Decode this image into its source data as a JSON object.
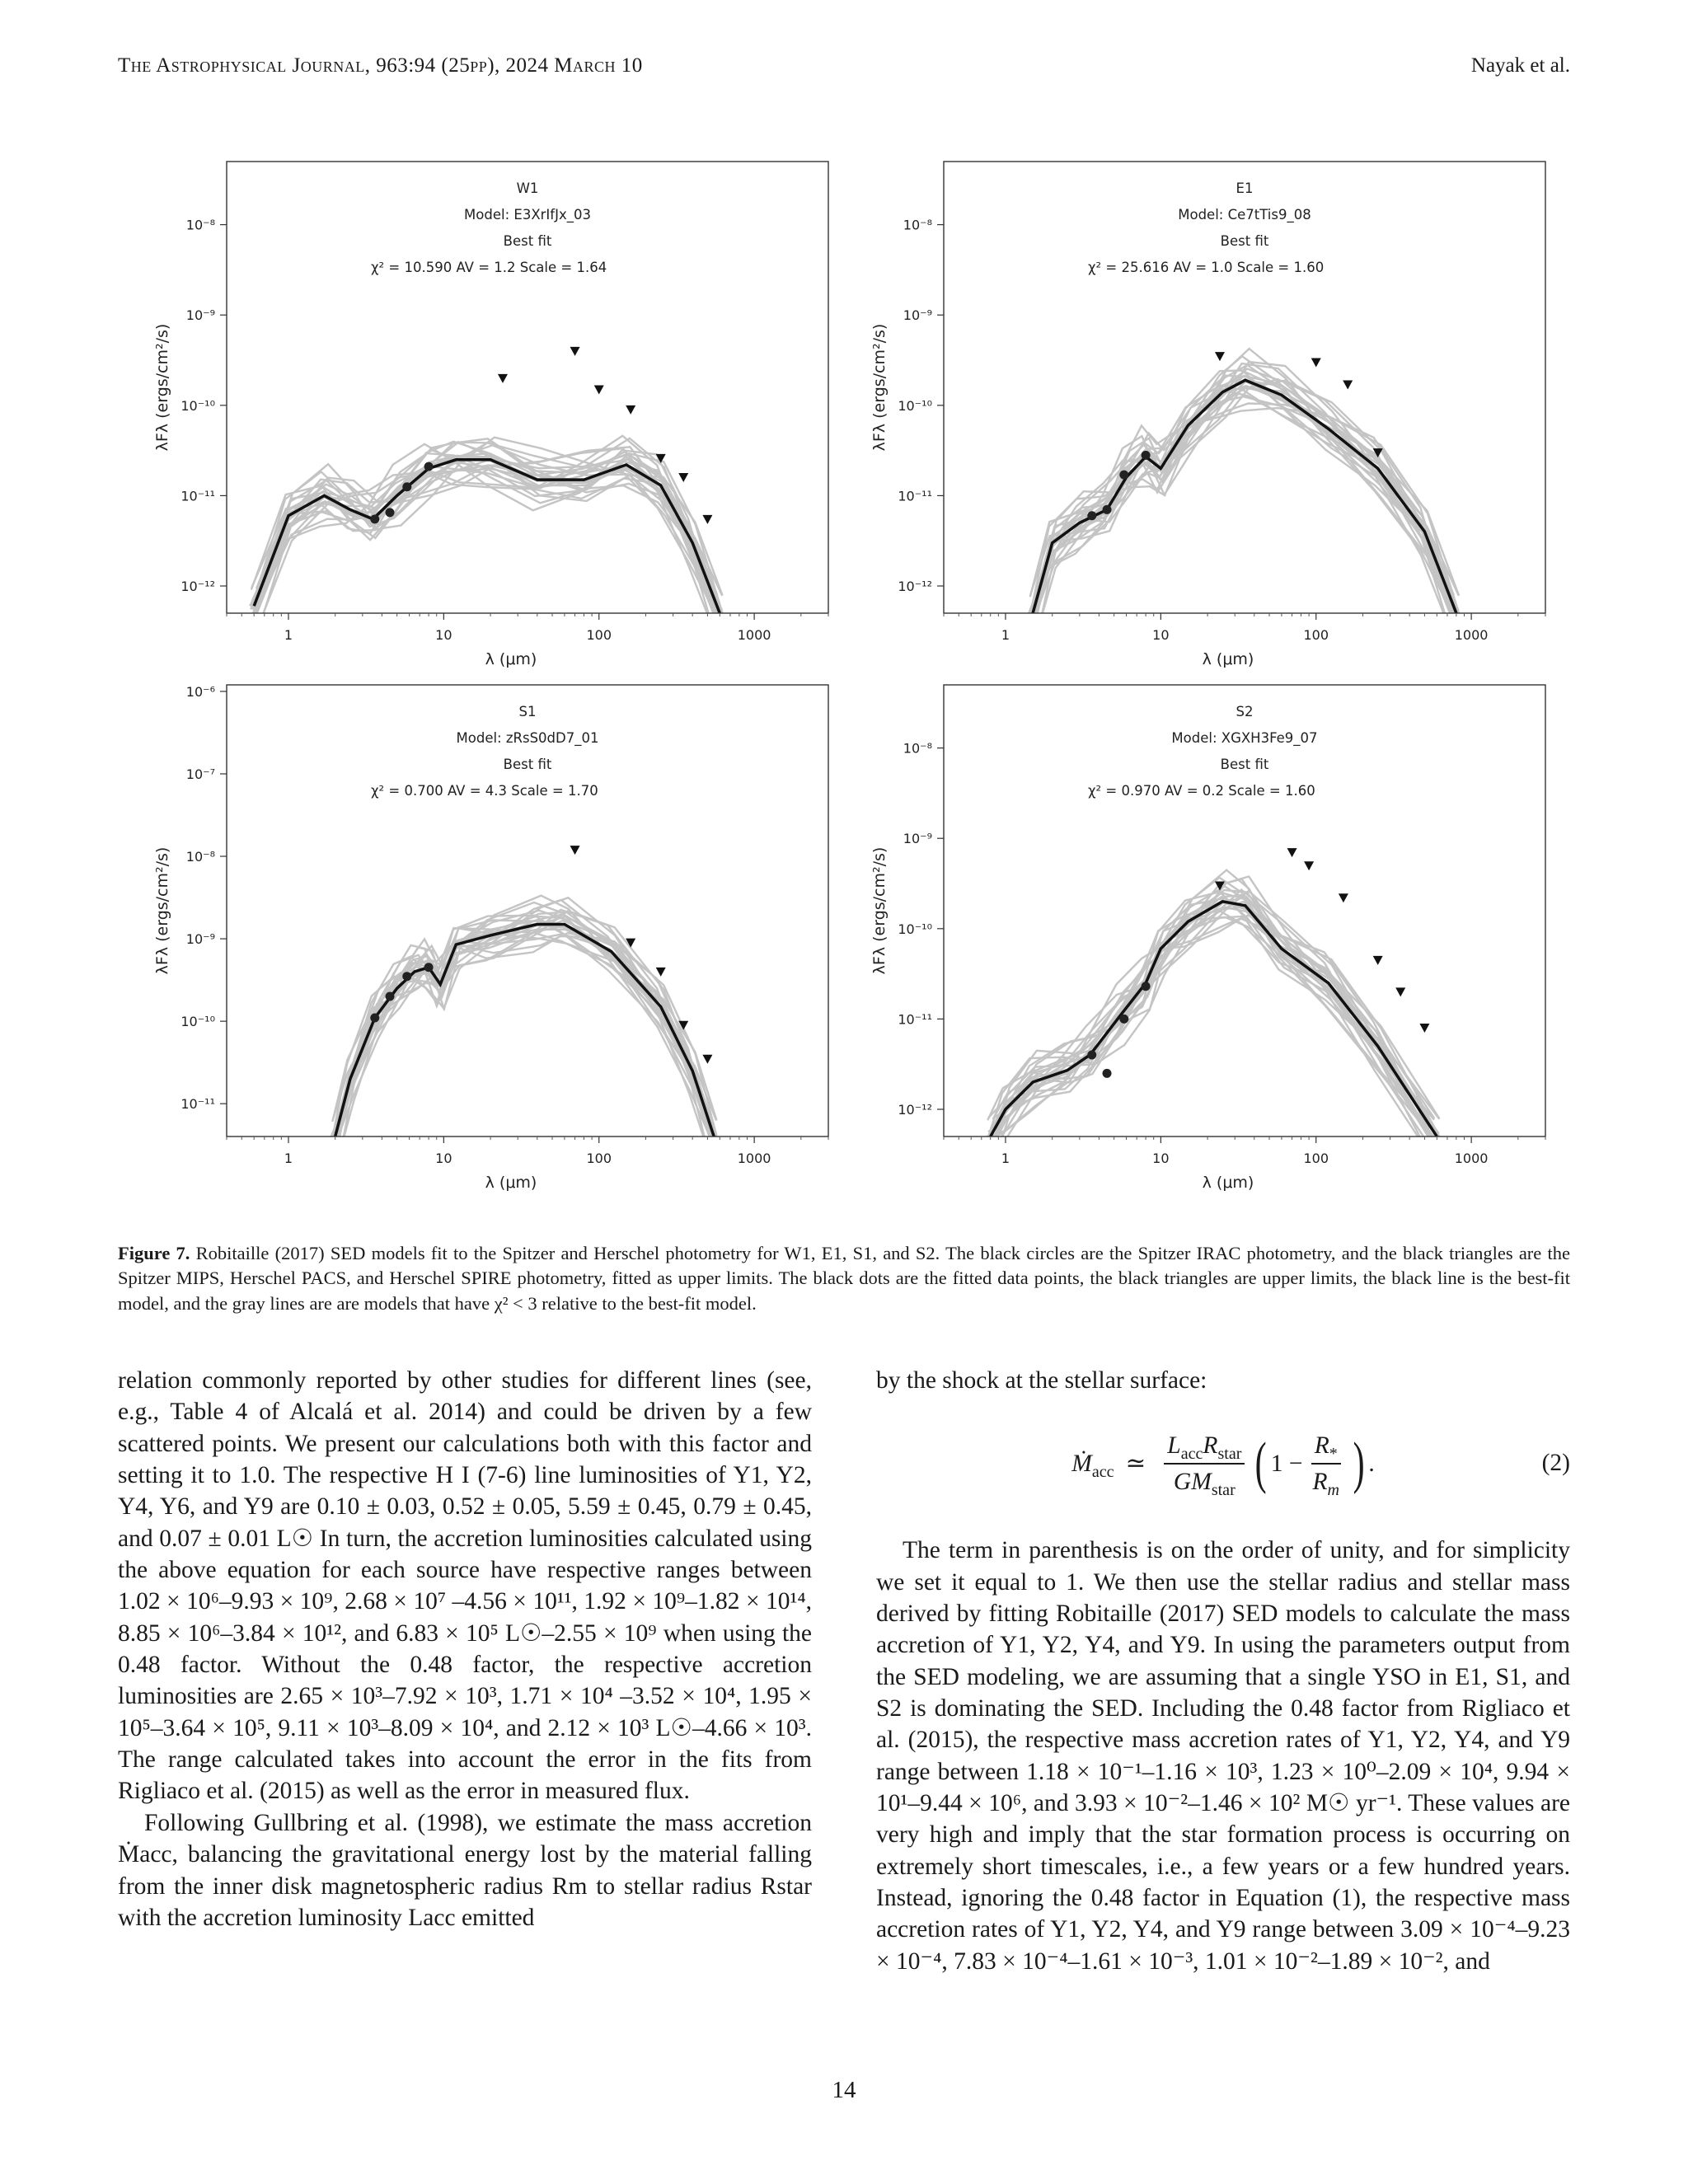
{
  "header": {
    "journal": "The Astrophysical Journal, 963:94 (25pp), 2024 March 10",
    "authors": "Nayak et al."
  },
  "figure": {
    "panels": [
      {
        "id": "W1",
        "model": "Model: E3XrIfJx_03",
        "best_fit": "Best fit",
        "fit_line": "χ² =     10.590    AV =   1.2    Scale =  1.64",
        "ylabel": "λFλ (ergs/cm²/s)",
        "xlabel": "λ (μm)"
      },
      {
        "id": "E1",
        "model": "Model: Ce7tTis9_08",
        "best_fit": "Best fit",
        "fit_line": "χ² =     25.616    AV =   1.0    Scale =  1.60",
        "ylabel": "λFλ (ergs/cm²/s)",
        "xlabel": "λ (μm)"
      },
      {
        "id": "S1",
        "model": "Model: zRsS0dD7_01",
        "best_fit": "Best fit",
        "fit_line": "χ² =     0.700    AV =   4.3    Scale =  1.70",
        "ylabel": "λFλ (ergs/cm²/s)",
        "xlabel": "λ (μm)"
      },
      {
        "id": "S2",
        "model": "Model: XGXH3Fe9_07",
        "best_fit": "Best fit",
        "fit_line": "χ² =     0.970    AV =   0.2    Scale =  1.60",
        "ylabel": "λFλ (ergs/cm²/s)",
        "xlabel": "λ (μm)"
      }
    ],
    "caption_label": "Figure 7.",
    "caption_text": " Robitaille (2017) SED models fit to the Spitzer and Herschel photometry for W1, E1, S1, and S2. The black circles are the Spitzer IRAC photometry, and the black triangles are the Spitzer MIPS, Herschel PACS, and Herschel SPIRE photometry, fitted as upper limits. The black dots are the fitted data points, the black triangles are upper limits, the black line is the best-fit model, and the gray lines are are models that have χ² < 3 relative to the best-fit model."
  },
  "chart_data": [
    {
      "type": "line",
      "title": "W1",
      "xlabel": "λ (μm)",
      "ylabel": "λFλ (ergs/cm²/s)",
      "xscale": "log",
      "yscale": "log",
      "xlim": [
        0.4,
        3000
      ],
      "ylim": [
        5e-13,
        5e-08
      ],
      "x_ticks": [
        "1",
        "10",
        "100",
        "1000"
      ],
      "y_ticks": [
        "10⁻¹²",
        "10⁻¹¹",
        "10⁻¹⁰",
        "10⁻⁹",
        "10⁻⁸"
      ],
      "detections": {
        "x": [
          3.6,
          4.5,
          5.8,
          8.0
        ],
        "y": [
          5.5e-12,
          6.5e-12,
          1.25e-11,
          2.1e-11
        ]
      },
      "upper_limits": {
        "x": [
          24,
          70,
          100,
          160,
          250,
          350,
          500
        ],
        "y": [
          2e-10,
          4e-10,
          1.5e-10,
          9e-11,
          2.6e-11,
          1.6e-11,
          5.5e-12
        ]
      },
      "best_fit": {
        "x": [
          0.6,
          1.0,
          1.7,
          2.5,
          3.5,
          5,
          8,
          12,
          20,
          40,
          80,
          150,
          250,
          400,
          600
        ],
        "y": [
          6e-13,
          6e-12,
          1e-11,
          7e-12,
          5.5e-12,
          1e-11,
          2e-11,
          2.5e-11,
          2.5e-11,
          1.5e-11,
          1.5e-11,
          2.2e-11,
          1.3e-11,
          3e-12,
          5e-13
        ]
      }
    },
    {
      "type": "line",
      "title": "E1",
      "xlabel": "λ (μm)",
      "ylabel": "λFλ (ergs/cm²/s)",
      "xscale": "log",
      "yscale": "log",
      "xlim": [
        0.4,
        3000
      ],
      "ylim": [
        5e-13,
        5e-08
      ],
      "x_ticks": [
        "1",
        "10",
        "100",
        "1000"
      ],
      "y_ticks": [
        "10⁻¹²",
        "10⁻¹¹",
        "10⁻¹⁰",
        "10⁻⁹",
        "10⁻⁸"
      ],
      "detections": {
        "x": [
          3.6,
          4.5,
          5.8,
          8.0
        ],
        "y": [
          6e-12,
          7e-12,
          1.7e-11,
          2.8e-11
        ]
      },
      "upper_limits": {
        "x": [
          24,
          100,
          160,
          250
        ],
        "y": [
          3.5e-10,
          3e-10,
          1.7e-10,
          3e-11
        ]
      },
      "best_fit": {
        "x": [
          1.5,
          2,
          3,
          4.5,
          6,
          8,
          10,
          15,
          25,
          35,
          60,
          120,
          250,
          500,
          800
        ],
        "y": [
          5e-13,
          3e-12,
          5e-12,
          7e-12,
          1.6e-11,
          2.7e-11,
          2e-11,
          6e-11,
          1.4e-10,
          1.9e-10,
          1.3e-10,
          5.5e-11,
          2e-11,
          4e-12,
          5e-13
        ]
      }
    },
    {
      "type": "line",
      "title": "S1",
      "xlabel": "λ (μm)",
      "ylabel": "λFλ (ergs/cm²/s)",
      "xscale": "log",
      "yscale": "log",
      "xlim": [
        0.4,
        3000
      ],
      "ylim": [
        4e-12,
        1.2e-06
      ],
      "x_ticks": [
        "1",
        "10",
        "100",
        "1000"
      ],
      "y_ticks": [
        "10⁻¹¹",
        "10⁻¹⁰",
        "10⁻⁹",
        "10⁻⁸",
        "10⁻⁷",
        "10⁻⁶"
      ],
      "detections": {
        "x": [
          3.6,
          4.5,
          5.8,
          8.0
        ],
        "y": [
          1.1e-10,
          2e-10,
          3.5e-10,
          4.5e-10
        ]
      },
      "upper_limits": {
        "x": [
          70,
          160,
          250,
          350,
          500
        ],
        "y": [
          1.2e-08,
          9e-10,
          4e-10,
          9e-11,
          3.5e-11
        ]
      },
      "best_fit": {
        "x": [
          2,
          2.5,
          3.6,
          5,
          6.5,
          8,
          9.5,
          12,
          20,
          40,
          60,
          120,
          250,
          400,
          550
        ],
        "y": [
          4e-12,
          2e-11,
          1.1e-10,
          2.5e-10,
          4e-10,
          4.5e-10,
          2.8e-10,
          8.5e-10,
          1.1e-09,
          1.5e-09,
          1.5e-09,
          7e-10,
          1.5e-10,
          2.5e-11,
          4e-12
        ]
      }
    },
    {
      "type": "line",
      "title": "S2",
      "xlabel": "λ (μm)",
      "ylabel": "λFλ (ergs/cm²/s)",
      "xscale": "log",
      "yscale": "log",
      "xlim": [
        0.4,
        3000
      ],
      "ylim": [
        5e-13,
        5e-08
      ],
      "x_ticks": [
        "1",
        "10",
        "100",
        "1000"
      ],
      "y_ticks": [
        "10⁻¹²",
        "10⁻¹¹",
        "10⁻¹⁰",
        "10⁻⁹",
        "10⁻⁸"
      ],
      "detections": {
        "x": [
          3.6,
          4.5,
          5.8,
          8.0
        ],
        "y": [
          4e-12,
          2.5e-12,
          1e-11,
          2.3e-11
        ]
      },
      "upper_limits": {
        "x": [
          24,
          70,
          90,
          150,
          250,
          350,
          500
        ],
        "y": [
          3e-10,
          7e-10,
          5e-10,
          2.2e-10,
          4.5e-11,
          2e-11,
          8e-12
        ]
      },
      "best_fit": {
        "x": [
          0.8,
          1.0,
          1.5,
          2.5,
          3.5,
          5.5,
          8,
          10,
          15,
          25,
          35,
          60,
          120,
          250,
          600
        ],
        "y": [
          5e-13,
          1e-12,
          2e-12,
          2.7e-12,
          4e-12,
          1.1e-11,
          2.5e-11,
          6e-11,
          1.2e-10,
          2e-10,
          1.8e-10,
          6e-11,
          2.5e-11,
          5e-12,
          5e-13
        ]
      }
    }
  ],
  "body": {
    "left_col": [
      "relation commonly reported by other studies for different lines (see, e.g., Table 4 of Alcalá et al. 2014) and could be driven by a few scattered points. We present our calculations both with this factor and setting it to 1.0. The respective H I (7-6) line luminosities of Y1, Y2, Y4, Y6, and Y9 are 0.10 ± 0.03, 0.52 ± 0.05, 5.59 ± 0.45, 0.79 ± 0.45, and 0.07 ± 0.01 L☉ In turn, the accretion luminosities calculated using the above equation for each source have respective ranges between 1.02 × 10⁶–9.93 × 10⁹, 2.68 × 10⁷ –4.56 × 10¹¹, 1.92 × 10⁹–1.82 × 10¹⁴, 8.85 × 10⁶–3.84 × 10¹², and 6.83 × 10⁵ L☉–2.55 × 10⁹ when using the 0.48 factor. Without the 0.48 factor, the respective accretion luminosities are 2.65 × 10³–7.92 × 10³, 1.71 × 10⁴ –3.52 × 10⁴, 1.95 × 10⁵–3.64 × 10⁵, 9.11 × 10³–8.09 × 10⁴, and 2.12 × 10³ L☉–4.66 × 10³. The range calculated takes into account the error in the fits from Rigliaco et al. (2015) as well as the error in measured flux.",
      "Following Gullbring et al. (1998), we estimate the mass accretion Ṁacc, balancing the gravitational energy lost by the material falling from the inner disk magnetospheric radius Rm to stellar radius Rstar with the accretion luminosity Lacc emitted"
    ],
    "right_intro": "by the shock at the stellar surface:",
    "equation_number": "(2)",
    "right_col": [
      "The term in parenthesis is on the order of unity, and for simplicity we set it equal to 1. We then use the stellar radius and stellar mass derived by fitting Robitaille (2017) SED models to calculate the mass accretion of Y1, Y2, Y4, and Y9. In using the parameters output from the SED modeling, we are assuming that a single YSO in E1, S1, and S2 is dominating the SED. Including the 0.48 factor from Rigliaco et al. (2015), the respective mass accretion rates of Y1, Y2, Y4, and Y9 range between 1.18 × 10⁻¹–1.16 × 10³, 1.23 × 10⁰–2.09 × 10⁴, 9.94 × 10¹–9.44 × 10⁶, and 3.93 × 10⁻²–1.46 × 10² M☉ yr⁻¹. These values are very high and imply that the star formation process is occurring on extremely short timescales, i.e., a few years or a few hundred years. Instead, ignoring the 0.48 factor in Equation (1), the respective mass accretion rates of Y1, Y2, Y4, and Y9 range between 3.09 × 10⁻⁴–9.23 × 10⁻⁴, 7.83 × 10⁻⁴–1.61 × 10⁻³, 1.01 × 10⁻²–1.89 × 10⁻², and"
    ]
  },
  "page_number": "14"
}
